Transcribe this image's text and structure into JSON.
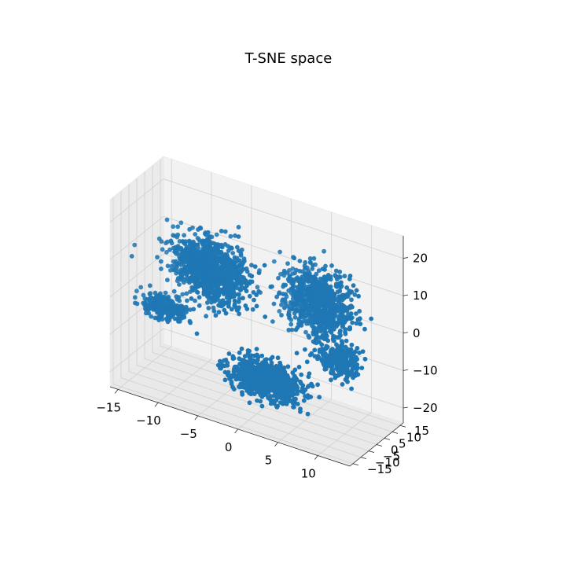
{
  "chart_data": {
    "type": "scatter",
    "projection": "3d",
    "title": "T-SNE space",
    "xlabel": "",
    "ylabel": "",
    "zlabel": "",
    "xlim": [
      -16,
      14
    ],
    "ylim": [
      -17,
      17
    ],
    "zlim": [
      -24,
      26
    ],
    "x_ticks": [
      -15,
      -10,
      -5,
      0,
      5,
      10
    ],
    "x_tick_labels": [
      "−15",
      "−10",
      "−5",
      "0",
      "5",
      "10"
    ],
    "y_ticks": [
      -15,
      -10,
      -5,
      0,
      5,
      10,
      15
    ],
    "y_tick_labels": [
      "−15",
      "−10",
      "−5",
      "0",
      "5",
      "10",
      "15"
    ],
    "z_ticks": [
      -20,
      -10,
      0,
      10,
      20
    ],
    "z_tick_labels": [
      "−20",
      "−10",
      "0",
      "10",
      "20"
    ],
    "grid": true,
    "marker_color": "#1f77b4",
    "clusters": [
      {
        "center": [
          -6,
          -4,
          10
        ],
        "spread": [
          4,
          4,
          7
        ],
        "count": 1100
      },
      {
        "center": [
          5,
          8,
          5
        ],
        "spread": [
          4,
          4,
          8
        ],
        "count": 800
      },
      {
        "center": [
          2,
          -9,
          -12
        ],
        "spread": [
          4,
          4,
          4
        ],
        "count": 850
      },
      {
        "center": [
          -11,
          -8,
          -2
        ],
        "spread": [
          2.5,
          2.5,
          3
        ],
        "count": 250
      },
      {
        "center": [
          9,
          2,
          -6
        ],
        "spread": [
          2.5,
          3,
          4
        ],
        "count": 250
      }
    ]
  }
}
